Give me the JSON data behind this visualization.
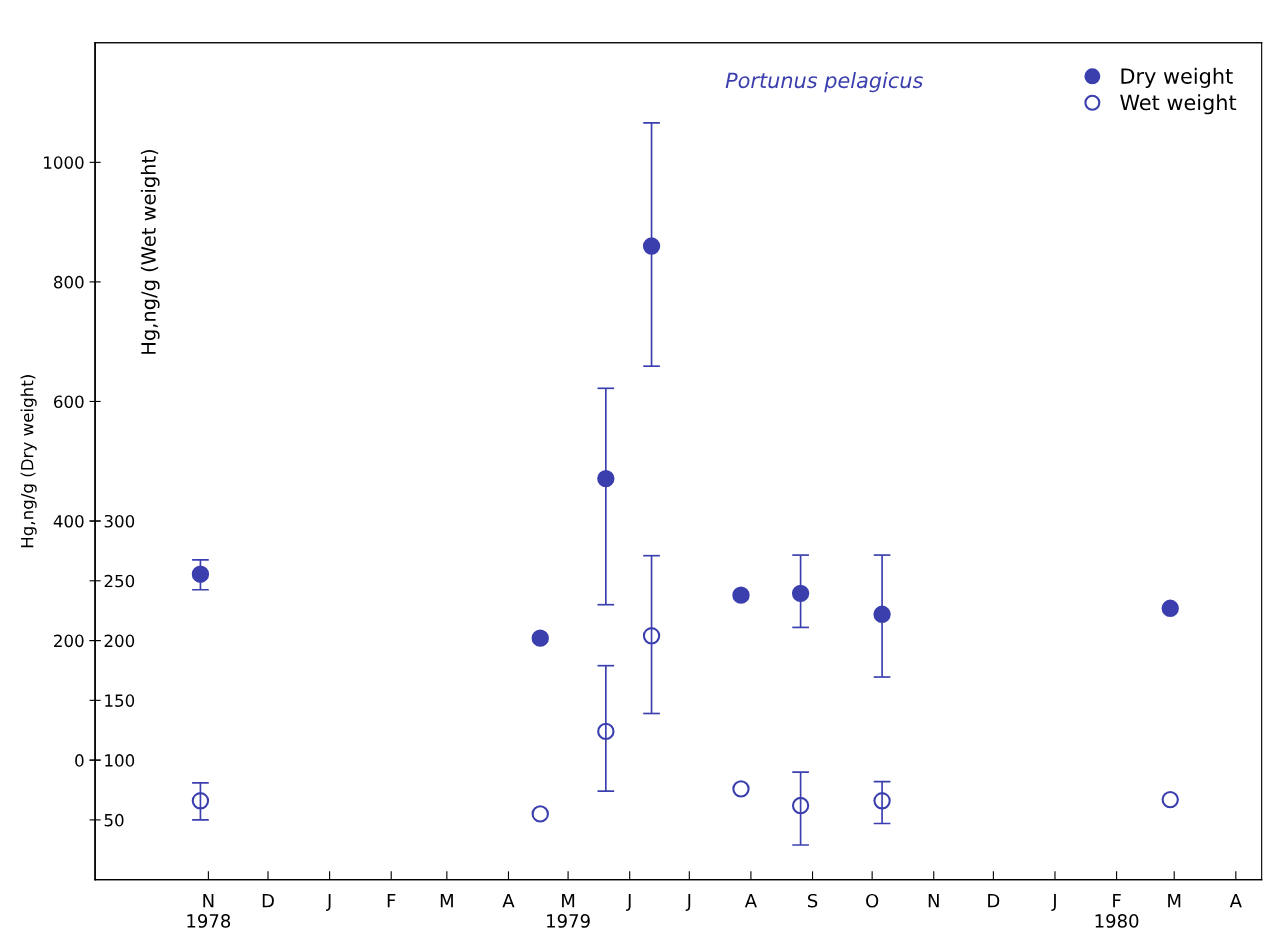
{
  "chart_data": {
    "type": "scatter",
    "ylabel": "Hg,ng/g (Dry weight)",
    "y2label": "Hg,ng/g (Wet weight)",
    "annotations": [
      "Portunus pelagicus"
    ],
    "x": [
      "1978-10-28",
      "1979-04-17",
      "1979-05-20",
      "1979-06-12",
      "1979-07-27",
      "1979-08-26",
      "1979-10-06",
      "1980-02-28"
    ],
    "series": [
      {
        "name": "Dry weight",
        "color": "#3b3fae",
        "marker": "circle",
        "values": [
          311,
          204,
          471,
          860,
          276,
          279,
          244,
          254
        ],
        "errors": [
          [
            285,
            335
          ],
          null,
          [
            260,
            622
          ],
          [
            659,
            1066
          ],
          null,
          [
            222,
            343
          ],
          [
            139,
            343
          ],
          null
        ]
      },
      {
        "name": "Wet weight",
        "color": "#3b3fae",
        "marker": "circle",
        "axis": "y2",
        "values": [
          66,
          55,
          124,
          204,
          76,
          62,
          66,
          67
        ],
        "errors": [
          [
            50,
            81
          ],
          null,
          [
            74,
            179
          ],
          [
            139,
            271
          ],
          null,
          [
            29,
            90
          ],
          [
            47,
            82
          ],
          null
        ]
      }
    ],
    "xlim": [
      "1978-09-05",
      "1980-04-14"
    ],
    "xticks": [
      {
        "value": "1978-11-01",
        "label": "N\n1978"
      },
      {
        "value": "1978-12-01",
        "label": "D"
      },
      {
        "value": "1979-01-01",
        "label": "J"
      },
      {
        "value": "1979-02-01",
        "label": "F"
      },
      {
        "value": "1979-03-01",
        "label": "M"
      },
      {
        "value": "1979-04-01",
        "label": "A"
      },
      {
        "value": "1979-05-01",
        "label": "M\n1979"
      },
      {
        "value": "1979-06-01",
        "label": "J"
      },
      {
        "value": "1979-07-01",
        "label": "J"
      },
      {
        "value": "1979-08-01",
        "label": "A"
      },
      {
        "value": "1979-09-01",
        "label": "S"
      },
      {
        "value": "1979-10-01",
        "label": "O"
      },
      {
        "value": "1979-11-01",
        "label": "N"
      },
      {
        "value": "1979-12-01",
        "label": "D"
      },
      {
        "value": "1980-01-01",
        "label": "J"
      },
      {
        "value": "1980-02-01",
        "label": "F\n1980"
      },
      {
        "value": "1980-03-01",
        "label": "M"
      },
      {
        "value": "1980-04-01",
        "label": "A"
      }
    ],
    "ylim": [
      -200,
      1200
    ],
    "yticks": [
      0,
      200,
      400,
      600,
      800,
      1000
    ],
    "y2lim": [
      0,
      700
    ],
    "y2ticks": [
      50,
      100,
      150,
      200,
      250,
      300
    ],
    "legend": "top right",
    "grid": false
  }
}
